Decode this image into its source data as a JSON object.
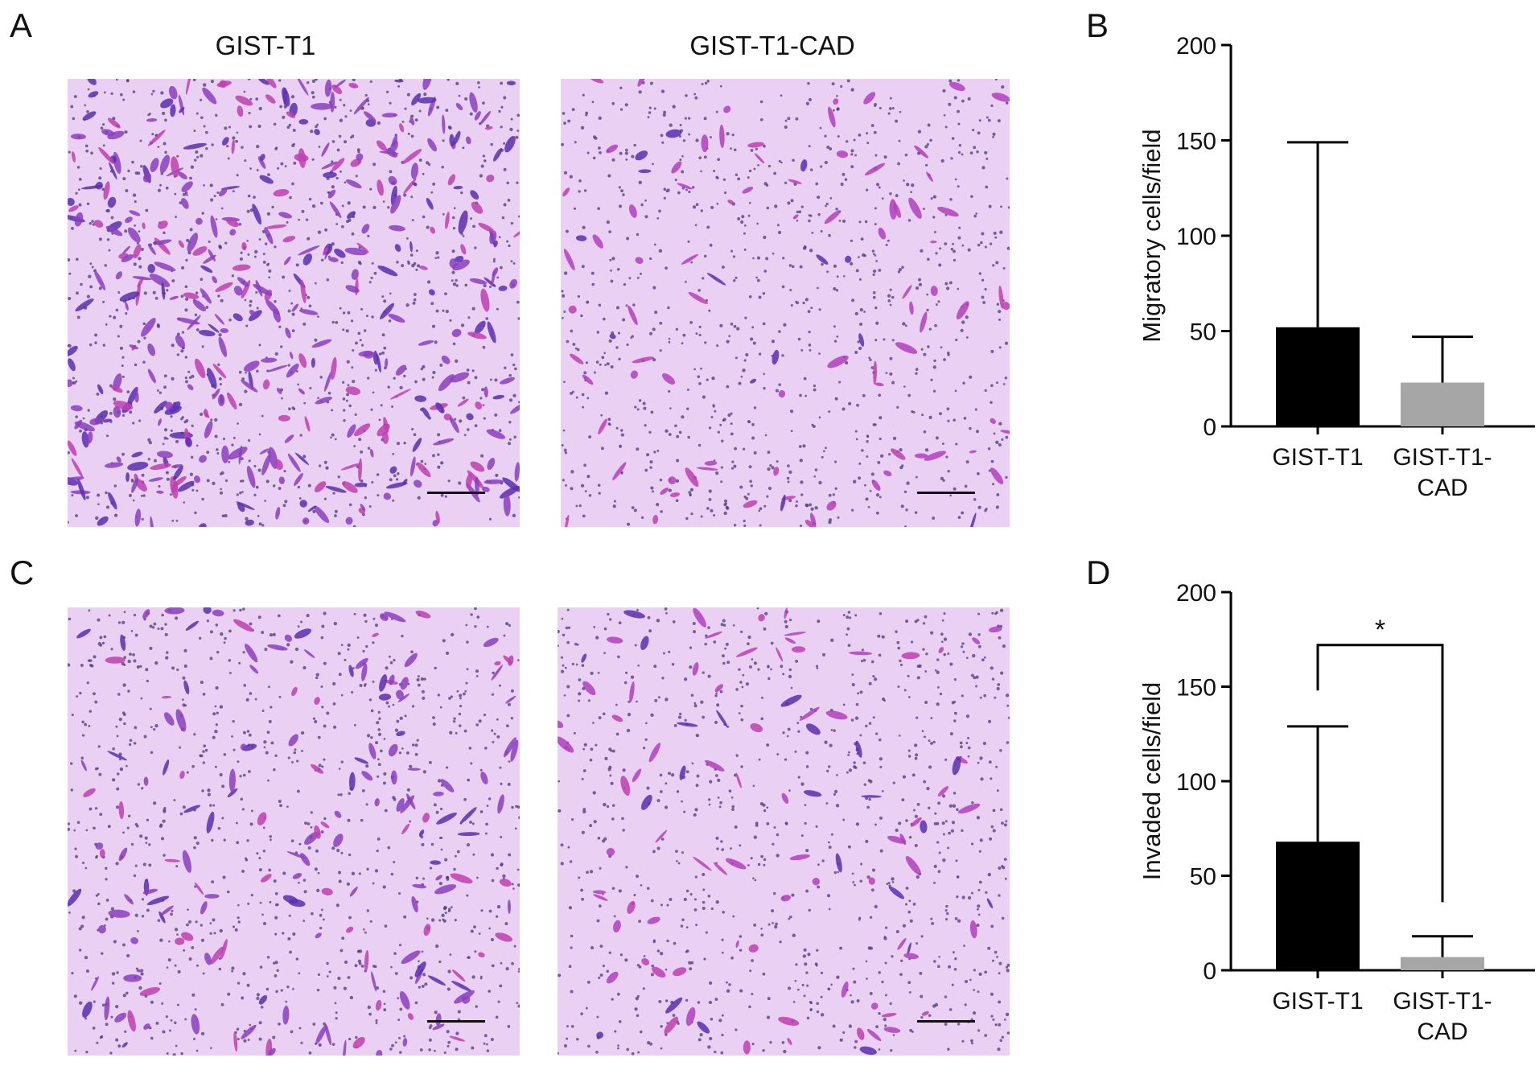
{
  "panels": {
    "A": {
      "letter": "A",
      "titles": [
        "GIST-T1",
        "GIST-T1-CAD"
      ]
    },
    "B": {
      "letter": "B"
    },
    "C": {
      "letter": "C"
    },
    "D": {
      "letter": "D"
    }
  },
  "micrographs": [
    {
      "name": "micrograph-A-gist-t1",
      "density": "high",
      "stain_color": "#8a3fc0"
    },
    {
      "name": "micrograph-A-gist-t1-cad",
      "density": "low",
      "stain_color": "#b23fc0"
    },
    {
      "name": "micrograph-C-gist-t1",
      "density": "medium",
      "stain_color": "#8a3fc0"
    },
    {
      "name": "micrograph-C-gist-t1-cad",
      "density": "low",
      "stain_color": "#b23fc0"
    }
  ],
  "colors": {
    "background_stain": "#ead0f2",
    "bar1": "#000000",
    "bar2": "#a6a6a6"
  },
  "chart_data": [
    {
      "type": "bar",
      "panel": "B",
      "categories": [
        "GIST-T1",
        "GIST-T1-CAD"
      ],
      "category_lines": [
        [
          "GIST-T1"
        ],
        [
          "GIST-T1-",
          "CAD"
        ]
      ],
      "values": [
        52,
        23
      ],
      "error_upper": [
        149,
        47
      ],
      "ylabel": "Migratory cells/field",
      "ylim": [
        0,
        200
      ],
      "yticks": [
        0,
        50,
        100,
        150,
        200
      ],
      "significance": null
    },
    {
      "type": "bar",
      "panel": "D",
      "categories": [
        "GIST-T1",
        "GIST-T1-CAD"
      ],
      "category_lines": [
        [
          "GIST-T1"
        ],
        [
          "GIST-T1-",
          "CAD"
        ]
      ],
      "values": [
        68,
        7
      ],
      "error_upper": [
        129,
        18
      ],
      "ylabel": "Invaded cells/field",
      "ylim": [
        0,
        200
      ],
      "yticks": [
        0,
        50,
        100,
        150,
        200
      ],
      "significance": {
        "label": "*",
        "bracket_top": 172,
        "left_end": 148,
        "right_end": 36
      }
    }
  ]
}
